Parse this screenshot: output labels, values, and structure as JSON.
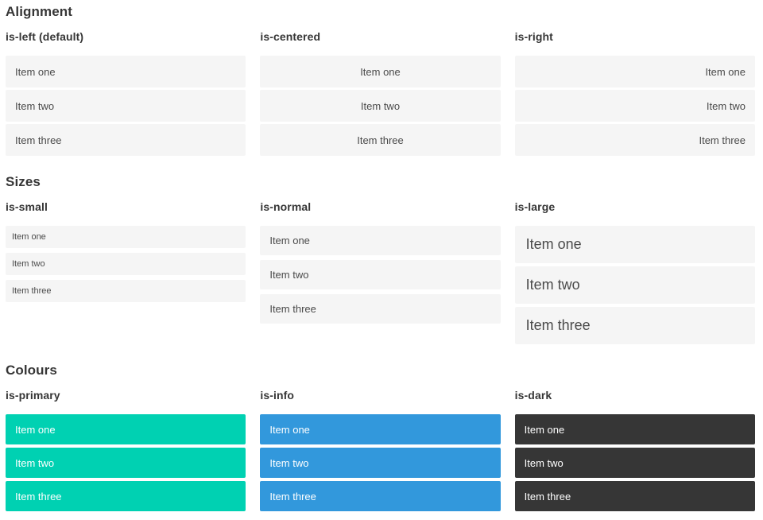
{
  "sections": [
    {
      "title": "Alignment",
      "columns": [
        {
          "label": "is-left (default)",
          "items": [
            "Item one",
            "Item two",
            "Item three"
          ]
        },
        {
          "label": "is-centered",
          "items": [
            "Item one",
            "Item two",
            "Item three"
          ]
        },
        {
          "label": "is-right",
          "items": [
            "Item one",
            "Item two",
            "Item three"
          ]
        }
      ]
    },
    {
      "title": "Sizes",
      "columns": [
        {
          "label": "is-small",
          "items": [
            "Item one",
            "Item two",
            "Item three"
          ]
        },
        {
          "label": "is-normal",
          "items": [
            "Item one",
            "Item two",
            "Item three"
          ]
        },
        {
          "label": "is-large",
          "items": [
            "Item one",
            "Item two",
            "Item three"
          ]
        }
      ]
    },
    {
      "title": "Colours",
      "columns": [
        {
          "label": "is-primary",
          "items": [
            "Item one",
            "Item two",
            "Item three"
          ]
        },
        {
          "label": "is-info",
          "items": [
            "Item one",
            "Item two",
            "Item three"
          ]
        },
        {
          "label": "is-dark",
          "items": [
            "Item one",
            "Item two",
            "Item three"
          ]
        }
      ]
    }
  ],
  "colors": {
    "heading_text": "#363636",
    "item_background": "#f5f5f5",
    "item_text": "#4a4a4a",
    "primary": "#00d1b2",
    "info": "#3298dc",
    "dark": "#363636",
    "colored_item_text": "#ffffff"
  }
}
